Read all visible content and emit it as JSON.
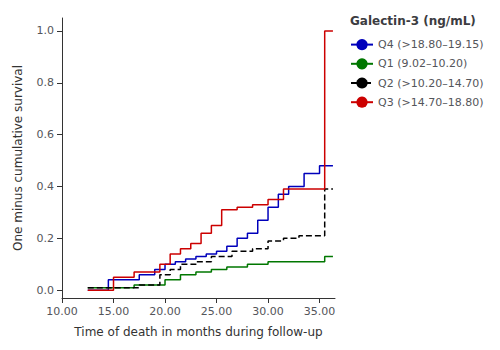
{
  "chart_data": {
    "type": "line",
    "xlabel": "Time of death in months during follow-up",
    "ylabel": "One minus cumulative survival",
    "xlim": [
      10,
      36.5
    ],
    "ylim": [
      -0.03,
      1.05
    ],
    "xticks": [
      {
        "value": 10.0,
        "label": "10.00"
      },
      {
        "value": 15.0,
        "label": "15.00"
      },
      {
        "value": 20.0,
        "label": "20.00"
      },
      {
        "value": 25.0,
        "label": "25.00"
      },
      {
        "value": 30.0,
        "label": "30.00"
      },
      {
        "value": 35.0,
        "label": "35.00"
      }
    ],
    "yticks": [
      {
        "value": 0.0,
        "label": "0.0"
      },
      {
        "value": 0.2,
        "label": "0.2"
      },
      {
        "value": 0.4,
        "label": "0.4"
      },
      {
        "value": 0.6,
        "label": "0.6"
      },
      {
        "value": 0.8,
        "label": "0.8"
      },
      {
        "value": 1.0,
        "label": "1.0"
      }
    ],
    "grid": false,
    "legend": "right",
    "legend_title": "Galectin-3 (ng/mL)",
    "series": [
      {
        "name": "Q4 (>18.80–19.15)",
        "color": "#0000bb",
        "line_style": "solid",
        "x": [
          12.5,
          14.5,
          14.5,
          17.5,
          17.5,
          19.0,
          19.0,
          20.0,
          20.0,
          21.0,
          21.0,
          22.0,
          22.0,
          23.0,
          23.0,
          24.0,
          24.0,
          25.0,
          25.0,
          26.0,
          26.0,
          27.0,
          27.0,
          28.0,
          28.0,
          29.0,
          29.0,
          30.0,
          30.0,
          31.0,
          31.0,
          32.0,
          32.0,
          33.5,
          33.5,
          35.0,
          35.0,
          36.3
        ],
        "values": [
          0.0,
          0.0,
          0.04,
          0.04,
          0.06,
          0.06,
          0.08,
          0.08,
          0.1,
          0.1,
          0.11,
          0.11,
          0.12,
          0.12,
          0.13,
          0.13,
          0.14,
          0.14,
          0.15,
          0.15,
          0.17,
          0.17,
          0.2,
          0.2,
          0.22,
          0.22,
          0.27,
          0.27,
          0.32,
          0.32,
          0.37,
          0.37,
          0.4,
          0.4,
          0.45,
          0.45,
          0.48,
          0.48
        ]
      },
      {
        "name": "Q1 (9.02–10.20)",
        "color": "#007700",
        "line_style": "solid",
        "x": [
          12.5,
          17.0,
          17.0,
          20.0,
          20.0,
          21.5,
          21.5,
          23.0,
          23.0,
          24.5,
          24.5,
          26.0,
          26.0,
          28.0,
          28.0,
          30.0,
          30.0,
          35.5,
          35.5,
          36.3
        ],
        "values": [
          0.01,
          0.01,
          0.02,
          0.02,
          0.04,
          0.04,
          0.06,
          0.06,
          0.07,
          0.07,
          0.08,
          0.08,
          0.09,
          0.09,
          0.1,
          0.1,
          0.11,
          0.11,
          0.13,
          0.13
        ]
      },
      {
        "name": "Q2 (>10.20–14.70)",
        "color": "#000000",
        "line_style": "dashed",
        "x": [
          12.5,
          17.5,
          17.5,
          19.5,
          19.5,
          20.5,
          20.5,
          21.5,
          21.5,
          23.0,
          23.0,
          24.5,
          24.5,
          26.5,
          26.5,
          28.5,
          28.5,
          30.0,
          30.0,
          31.5,
          31.5,
          33.0,
          33.0,
          35.5,
          35.5,
          36.3
        ],
        "values": [
          0.01,
          0.01,
          0.02,
          0.02,
          0.06,
          0.06,
          0.08,
          0.08,
          0.1,
          0.1,
          0.11,
          0.11,
          0.13,
          0.13,
          0.15,
          0.15,
          0.16,
          0.16,
          0.19,
          0.19,
          0.2,
          0.2,
          0.21,
          0.21,
          0.39,
          0.39
        ]
      },
      {
        "name": "Q3 (>14.70–18.80)",
        "color": "#cc0000",
        "line_style": "solid",
        "x": [
          12.5,
          15.0,
          15.0,
          17.0,
          17.0,
          19.5,
          19.5,
          20.5,
          20.5,
          21.5,
          21.5,
          22.5,
          22.5,
          23.5,
          23.5,
          24.5,
          24.5,
          25.5,
          25.5,
          27.0,
          27.0,
          28.5,
          28.5,
          30.0,
          30.0,
          31.5,
          31.5,
          35.5,
          35.5,
          36.3
        ],
        "values": [
          0.0,
          0.0,
          0.05,
          0.05,
          0.07,
          0.07,
          0.1,
          0.1,
          0.14,
          0.14,
          0.16,
          0.16,
          0.18,
          0.18,
          0.22,
          0.22,
          0.25,
          0.25,
          0.31,
          0.31,
          0.32,
          0.32,
          0.33,
          0.33,
          0.35,
          0.35,
          0.39,
          0.39,
          1.0,
          1.0
        ]
      }
    ]
  }
}
